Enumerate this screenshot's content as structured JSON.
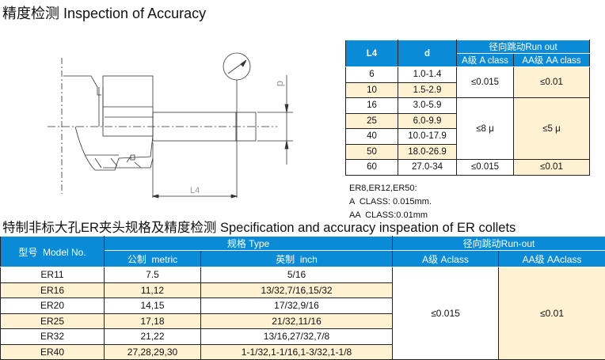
{
  "title_accuracy": "精度检测 Inspection of Accuracy",
  "title_spec": "特制非标大孔ER夹头规格及精度检测 Specification and accuracy inspeation of ER collets",
  "drawing": {
    "label_l4": "L4",
    "label_d": "d"
  },
  "accuracy_table": {
    "headers": {
      "l4": "L4",
      "d": "d",
      "runout": "径向跳动Run out",
      "a_class": "A级 A class",
      "aa_class": "AA级 AA class"
    },
    "rows": [
      {
        "l4": "6",
        "d": "1.0-1.4"
      },
      {
        "l4": "10",
        "d": "1.5-2.9"
      },
      {
        "l4": "16",
        "d": "3.0-5.9"
      },
      {
        "l4": "25",
        "d": "6.0-9.9"
      },
      {
        "l4": "40",
        "d": "10.0-17.9"
      },
      {
        "l4": "50",
        "d": "18.0-26.9"
      },
      {
        "l4": "60",
        "d": "27.0-34"
      }
    ],
    "groups": [
      {
        "a": "≤0.015",
        "aa": "≤0.01"
      },
      {
        "a": "≤8 μ",
        "aa": "≤5 μ"
      },
      {
        "a": "≤0.015",
        "aa": "≤0.01"
      }
    ]
  },
  "note": {
    "line1": "ER8,ER12,ER50:",
    "line2": "A  CLASS: 0.015mm.",
    "line3": "AA  CLASS:0.01mm"
  },
  "spec_table": {
    "headers": {
      "model": "型号  Model No.",
      "type": "规格 Type",
      "metric": "公制  metric",
      "inch": "英制  inch",
      "runout": "径向跳动Run-out",
      "a_class": "A级 Aclass",
      "aa_class": "AA级 AAclass"
    },
    "rows": [
      {
        "model": "ER11",
        "metric": "7.5",
        "inch": "5/16"
      },
      {
        "model": "ER16",
        "metric": "11,12",
        "inch": "13/32,7/16,15/32"
      },
      {
        "model": "ER20",
        "metric": "14,15",
        "inch": "17/32,9/16"
      },
      {
        "model": "ER25",
        "metric": "17,18",
        "inch": "21/32,11/16"
      },
      {
        "model": "ER32",
        "metric": "21,22",
        "inch": "13/16,27/32,7/8"
      },
      {
        "model": "ER40",
        "metric": "27,28,29,30",
        "inch": "1-1/32,1-1/16,1-3/32,1-1/8"
      }
    ],
    "a_value": "≤0.015",
    "aa_value": "≤0.01"
  },
  "colors": {
    "header_blue": "#0a8bd8",
    "row_yellow": "#fef2d2"
  }
}
